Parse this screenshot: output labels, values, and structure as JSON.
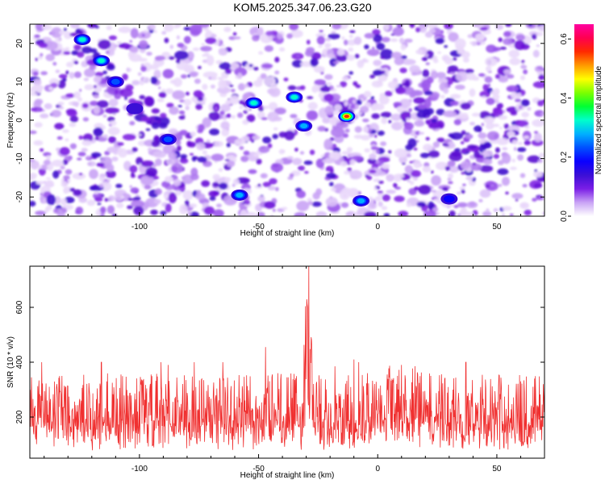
{
  "title": "KOM5.2025.347.06.23.G20",
  "chart_data": [
    {
      "type": "heatmap",
      "title": "",
      "xlabel": "Height of straight line (km)",
      "ylabel": "Frequency (Hz)",
      "xlim": [
        -146,
        70
      ],
      "ylim": [
        -25,
        25
      ],
      "xticks": [
        -100,
        -50,
        0,
        50
      ],
      "yticks": [
        -20,
        -10,
        0,
        10,
        20
      ],
      "colorbar": {
        "label": "Normalized spectral amplitude",
        "range": [
          0.0,
          0.65
        ],
        "ticks": [
          0.0,
          0.2,
          0.4,
          0.6
        ],
        "tick_labels": [
          "0.0",
          "0.2",
          "0.4",
          "0.6"
        ],
        "colors": [
          "#ffffff",
          "#c9a3f5",
          "#7a1ee6",
          "#3b0fd6",
          "#0a00ff",
          "#0050ff",
          "#00b0ff",
          "#00ffcc",
          "#00ff33",
          "#7cff00",
          "#ffff00",
          "#ff9900",
          "#ff2a00",
          "#ff0050",
          "#ff00a0"
        ]
      },
      "hotspots": [
        {
          "x": -124,
          "y": 21,
          "value": 0.3
        },
        {
          "x": -116,
          "y": 15.5,
          "value": 0.28
        },
        {
          "x": -110,
          "y": 10,
          "value": 0.18
        },
        {
          "x": -52,
          "y": 4.5,
          "value": 0.28
        },
        {
          "x": -35,
          "y": 6,
          "value": 0.3
        },
        {
          "x": -31,
          "y": -1.5,
          "value": 0.22
        },
        {
          "x": -13,
          "y": 1,
          "value": 0.64
        },
        {
          "x": -58,
          "y": -19.5,
          "value": 0.25
        },
        {
          "x": -7,
          "y": -21,
          "value": 0.22
        },
        {
          "x": -88,
          "y": -5,
          "value": 0.18
        },
        {
          "x": 30,
          "y": -20.5,
          "value": 0.15
        },
        {
          "x": -102,
          "y": 3,
          "value": 0.12
        }
      ]
    },
    {
      "type": "line",
      "title": "",
      "xlabel": "Height of straight line (km)",
      "ylabel": "SNR (10 * v/v)",
      "xlim": [
        -146,
        70
      ],
      "ylim": [
        50,
        750
      ],
      "xticks": [
        -100,
        -50,
        0,
        50
      ],
      "yticks": [
        200,
        400,
        600
      ],
      "series": [
        {
          "name": "SNR",
          "color": "#f03030",
          "baseline_min": 60,
          "typical_max": 300,
          "peaks": [
            {
              "x": -29,
              "y": 750
            },
            {
              "x": -29.5,
              "y": 600
            },
            {
              "x": -30,
              "y": 480
            },
            {
              "x": -47,
              "y": 455
            },
            {
              "x": -116,
              "y": 400
            },
            {
              "x": -77,
              "y": 400
            },
            {
              "x": -141,
              "y": 400
            },
            {
              "x": -91,
              "y": 400
            },
            {
              "x": -65,
              "y": 400
            },
            {
              "x": -88,
              "y": 390
            },
            {
              "x": -10,
              "y": 410
            },
            {
              "x": -8,
              "y": 400
            },
            {
              "x": 37,
              "y": 400
            },
            {
              "x": 10,
              "y": 390
            },
            {
              "x": -18,
              "y": 385
            },
            {
              "x": 60,
              "y": 330
            }
          ]
        }
      ]
    }
  ]
}
